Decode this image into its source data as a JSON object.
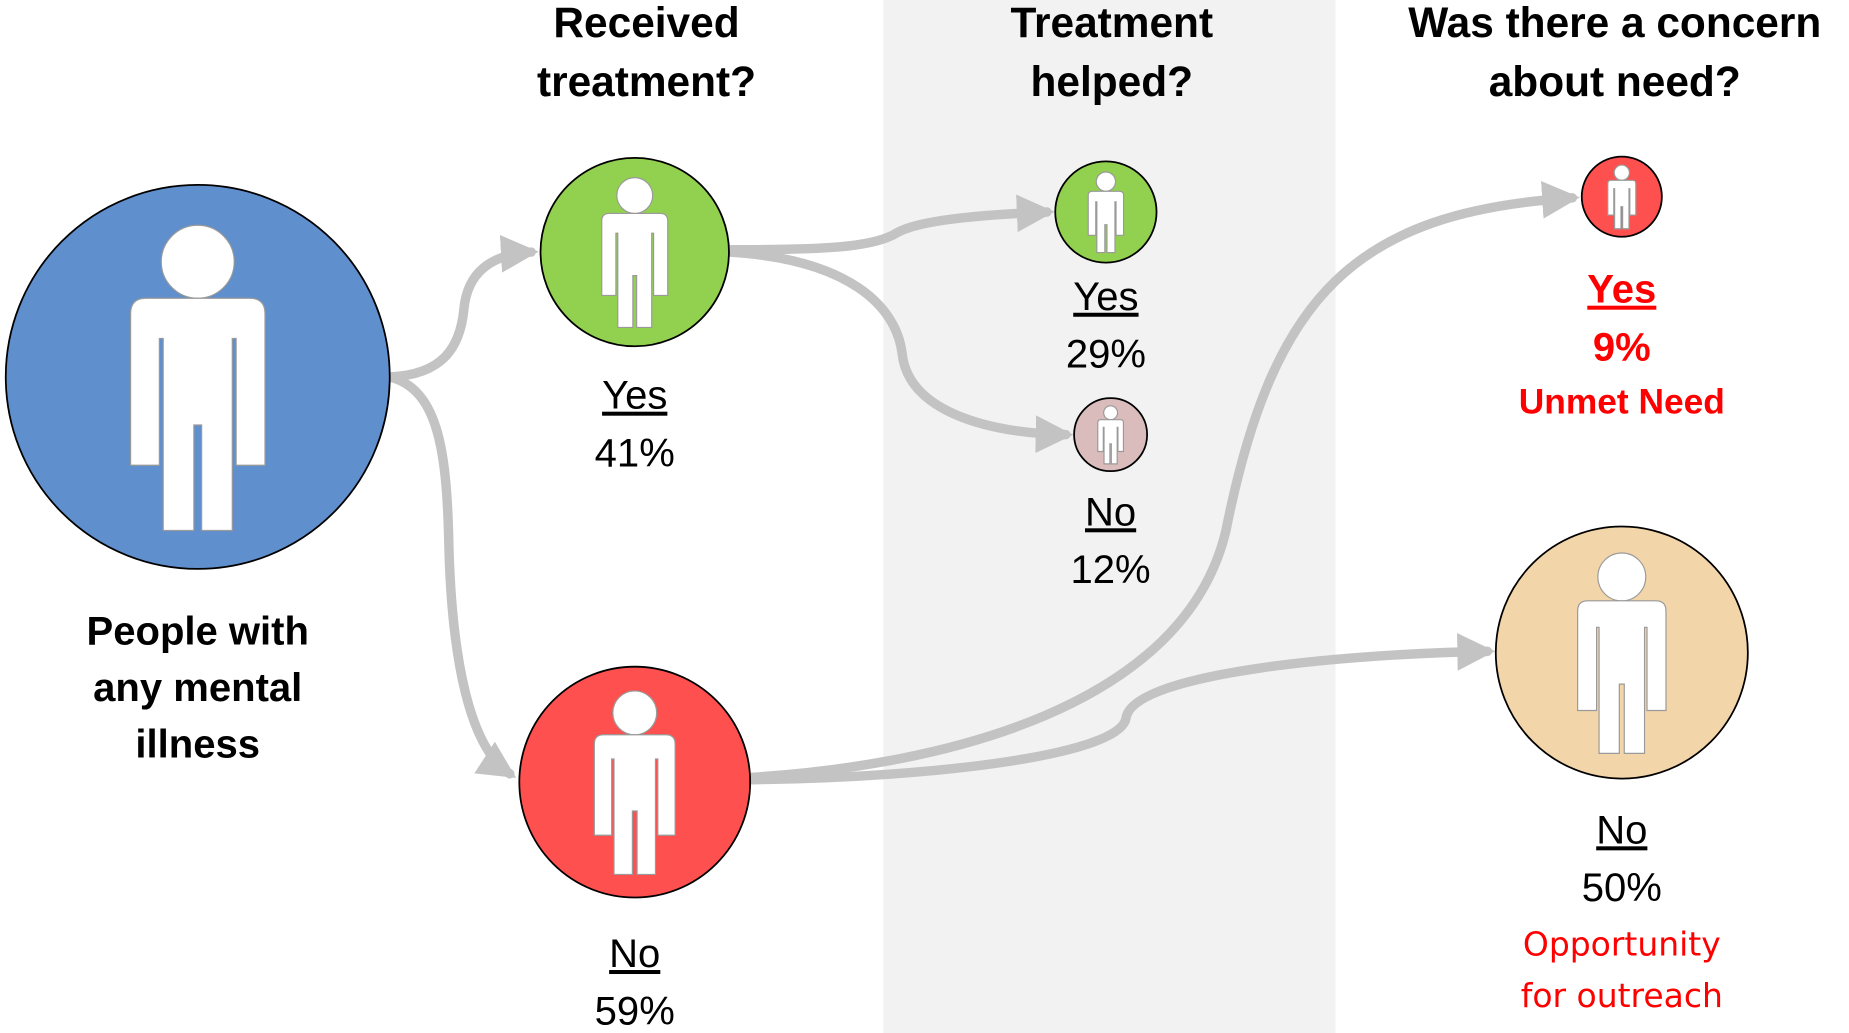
{
  "headers": [
    [
      "Received",
      "treatment?"
    ],
    [
      "Treatment",
      "helped?"
    ],
    [
      "Was there a concern",
      "about need?"
    ]
  ],
  "root": {
    "label": [
      "People with",
      "any mental",
      "illness"
    ]
  },
  "nodes": [
    {
      "answer": "Yes",
      "share": "41%"
    },
    {
      "answer": "No",
      "share": "59%"
    },
    {
      "answer": "Yes",
      "share": "29%"
    },
    {
      "answer": "No",
      "share": "12%"
    },
    {
      "answer": "Yes",
      "share": "9%",
      "note": [
        "Unmet Need"
      ]
    },
    {
      "answer": "No",
      "share": "50%",
      "note": [
        "Opportunity",
        "for outreach"
      ]
    }
  ]
}
